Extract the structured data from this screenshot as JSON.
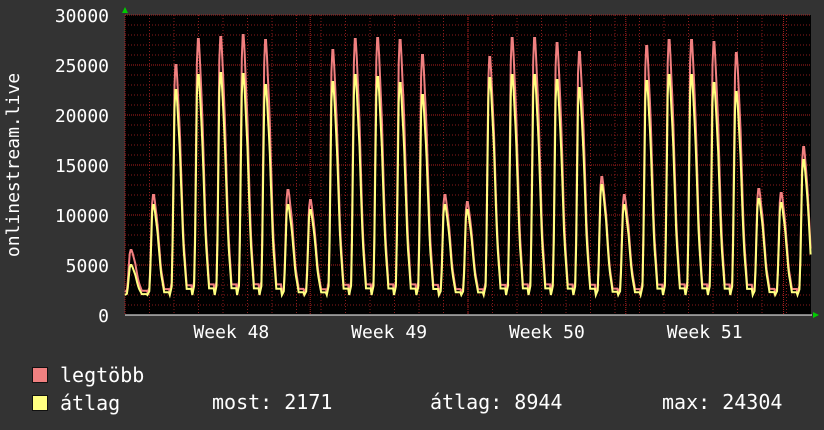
{
  "chart_data": {
    "type": "area",
    "ylabel": "onlinestream.live",
    "ylim": [
      0,
      30000
    ],
    "yticks": [
      0,
      5000,
      10000,
      15000,
      20000,
      25000,
      30000
    ],
    "xticks": [
      {
        "label": "Week 48",
        "pos": 0.155
      },
      {
        "label": "Week 49",
        "pos": 0.385
      },
      {
        "label": "Week 50",
        "pos": 0.615
      },
      {
        "label": "Week 51",
        "pos": 0.845
      }
    ],
    "grid": true,
    "colors": {
      "max": "#f08080",
      "avg": "#ffff80",
      "grid": "#8a1c1c",
      "background": "#000000"
    },
    "series": [
      {
        "name": "legtöbb",
        "values": [
          6500,
          12000,
          25000,
          27600,
          27800,
          28000,
          27500,
          12500,
          11500,
          26500,
          27600,
          27700,
          27500,
          26000,
          12000,
          11300,
          25800,
          27700,
          27700,
          27200,
          26300,
          13800,
          12000,
          26900,
          27500,
          27500,
          27300,
          26200,
          12600,
          12200,
          16800
        ]
      },
      {
        "name": "átlag",
        "values": [
          5000,
          11000,
          22500,
          24000,
          24200,
          24100,
          23000,
          11000,
          10500,
          23300,
          24000,
          23800,
          23200,
          22000,
          11000,
          10500,
          23700,
          24000,
          24000,
          23500,
          22700,
          13000,
          11000,
          23400,
          24000,
          24000,
          23200,
          22300,
          11600,
          11200,
          15500
        ]
      }
    ]
  },
  "legend": [
    {
      "label": "legtöbb",
      "color": "#f08080"
    },
    {
      "label": "átlag",
      "color": "#ffff80"
    }
  ],
  "stats": {
    "most": "most: 2171",
    "atlag": "átlag: 8944",
    "max": "max: 24304"
  }
}
